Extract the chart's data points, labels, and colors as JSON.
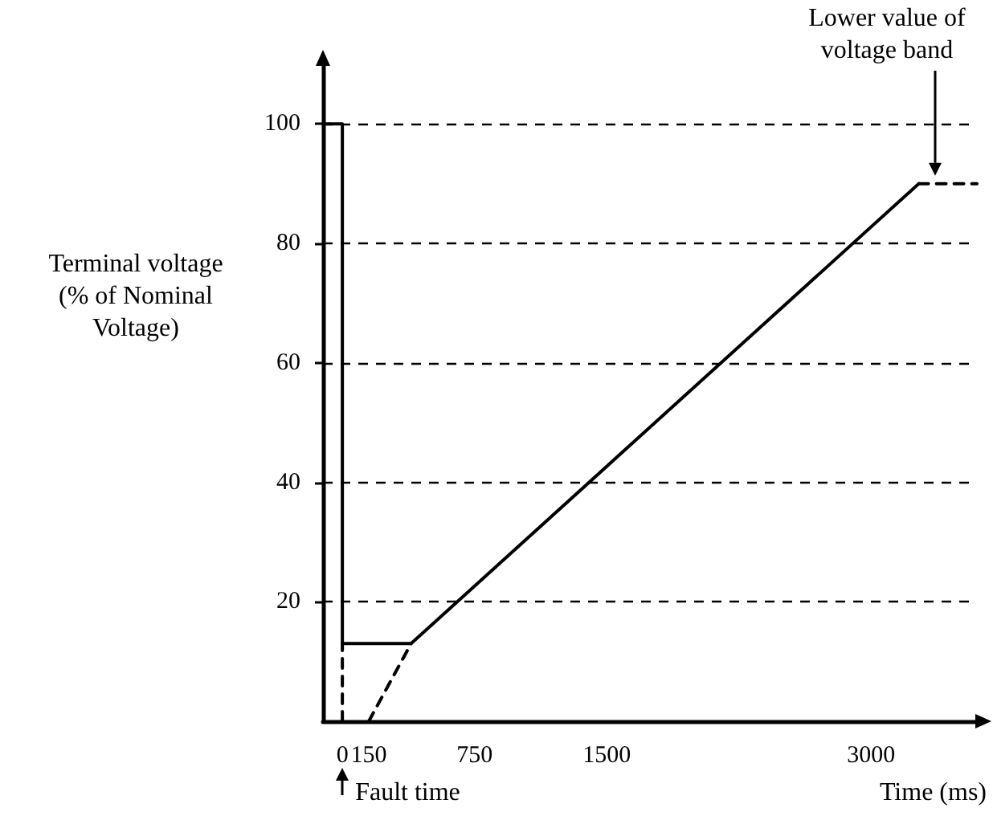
{
  "chart_data": {
    "type": "line",
    "xlabel": "Time (ms)",
    "ylabel": "Terminal voltage (% of Nominal Voltage)",
    "xlim": [
      -110,
      3600
    ],
    "xticks": [
      0,
      150,
      750,
      1500,
      3000
    ],
    "ylim": [
      0,
      110
    ],
    "yticks": [
      20,
      40,
      60,
      80,
      100
    ],
    "grid": "y",
    "marker": "none",
    "series": [
      {
        "color": "#000000",
        "line_style": "solid",
        "x": [
          -110,
          0,
          0,
          390,
          3270
        ],
        "values": [
          100,
          100,
          13,
          13,
          90
        ]
      },
      {
        "color": "#000000",
        "line_style": "dashed",
        "x": [
          0,
          0
        ],
        "values": [
          0,
          13
        ]
      },
      {
        "color": "#000000",
        "line_style": "dashed",
        "x": [
          150,
          390
        ],
        "values": [
          0,
          13
        ]
      },
      {
        "color": "#000000",
        "line_style": "dashed",
        "x": [
          3270,
          3600
        ],
        "values": [
          90,
          90
        ]
      }
    ],
    "annotations": [
      "Lower value of voltage band",
      {
        "text": "Fault time",
        "x": 0,
        "y": 0
      }
    ]
  }
}
